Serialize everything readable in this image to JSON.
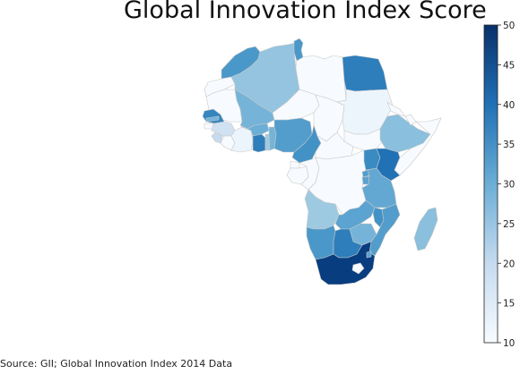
{
  "title": "Global Innovation Index Score",
  "source": "Source: GII; Global Innovation Index 2014 Data",
  "colorbar": {
    "min": 10,
    "max": 50,
    "ticks": [
      "10",
      "15",
      "20",
      "25",
      "30",
      "35",
      "40",
      "45",
      "50"
    ],
    "color_low": "#f7fbff",
    "color_high": "#08306b",
    "colormap": "Blues"
  },
  "map_data": {
    "type": "choropleth",
    "region": "Africa",
    "regions": [
      {
        "id": "morocco",
        "value": 34
      },
      {
        "id": "western-sahara",
        "value": 10
      },
      {
        "id": "algeria",
        "value": 26
      },
      {
        "id": "tunisia",
        "value": 34
      },
      {
        "id": "libya",
        "value": 10
      },
      {
        "id": "egypt",
        "value": 38
      },
      {
        "id": "mauritania",
        "value": 10
      },
      {
        "id": "mali",
        "value": 29
      },
      {
        "id": "niger",
        "value": 10
      },
      {
        "id": "chad",
        "value": 10
      },
      {
        "id": "sudan",
        "value": 12
      },
      {
        "id": "south-sudan",
        "value": 10
      },
      {
        "id": "eritrea",
        "value": 10
      },
      {
        "id": "ethiopia",
        "value": 27
      },
      {
        "id": "djibouti",
        "value": 10
      },
      {
        "id": "somalia",
        "value": 10
      },
      {
        "id": "senegal",
        "value": 37
      },
      {
        "id": "gambia",
        "value": 29
      },
      {
        "id": "guinea-bissau",
        "value": 10
      },
      {
        "id": "guinea",
        "value": 18
      },
      {
        "id": "sierra-leone",
        "value": 20
      },
      {
        "id": "liberia",
        "value": 10
      },
      {
        "id": "cote-divoire",
        "value": 12
      },
      {
        "id": "burkina-faso",
        "value": 30
      },
      {
        "id": "ghana",
        "value": 38
      },
      {
        "id": "togo",
        "value": 25
      },
      {
        "id": "benin",
        "value": 29
      },
      {
        "id": "nigeria",
        "value": 33
      },
      {
        "id": "cameroon",
        "value": 35
      },
      {
        "id": "central-african-rep",
        "value": 10
      },
      {
        "id": "equatorial-guinea",
        "value": 10
      },
      {
        "id": "gabon",
        "value": 10
      },
      {
        "id": "congo",
        "value": 10
      },
      {
        "id": "dr-congo",
        "value": 10
      },
      {
        "id": "uganda",
        "value": 36
      },
      {
        "id": "kenya",
        "value": 40
      },
      {
        "id": "rwanda",
        "value": 33
      },
      {
        "id": "burundi",
        "value": 32
      },
      {
        "id": "tanzania",
        "value": 31
      },
      {
        "id": "angola",
        "value": 25
      },
      {
        "id": "zambia",
        "value": 32
      },
      {
        "id": "malawi",
        "value": 35
      },
      {
        "id": "mozambique",
        "value": 33
      },
      {
        "id": "zimbabwe",
        "value": 29
      },
      {
        "id": "namibia",
        "value": 34
      },
      {
        "id": "botswana",
        "value": 38
      },
      {
        "id": "south-africa",
        "value": 48
      },
      {
        "id": "lesotho",
        "value": 10
      },
      {
        "id": "swaziland",
        "value": 32
      },
      {
        "id": "madagascar",
        "value": 27
      }
    ]
  }
}
